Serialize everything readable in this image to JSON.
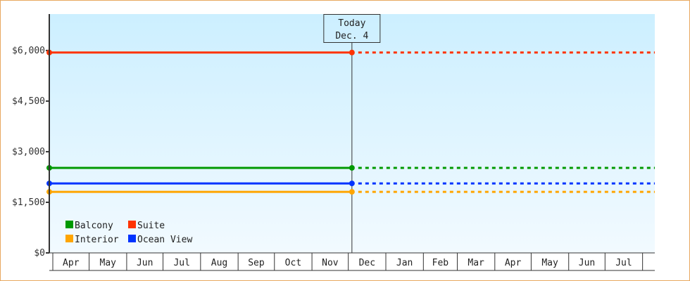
{
  "chart_data": {
    "type": "line",
    "title": "",
    "xlabel": "",
    "ylabel": "",
    "ylim": [
      0,
      7080
    ],
    "yticks": [
      {
        "value": 0,
        "label": "$0"
      },
      {
        "value": 1500,
        "label": "$1,500"
      },
      {
        "value": 3000,
        "label": "$3,000"
      },
      {
        "value": 4500,
        "label": "$4,500"
      },
      {
        "value": 6000,
        "label": "$6,000"
      }
    ],
    "x_months": [
      "Apr",
      "May",
      "Jun",
      "Jul",
      "Aug",
      "Sep",
      "Oct",
      "Nov",
      "Dec",
      "Jan",
      "Feb",
      "Mar",
      "Apr",
      "May",
      "Jun",
      "Jul"
    ],
    "today": {
      "label": "Today",
      "date": "Dec. 4"
    },
    "grid": false,
    "legend_position": "bottom-left",
    "series": [
      {
        "name": "Balcony",
        "color": "#009900",
        "value": 2520
      },
      {
        "name": "Suite",
        "color": "#ff3300",
        "value": 5940
      },
      {
        "name": "Interior",
        "color": "#ffa500",
        "value": 1810
      },
      {
        "name": "Ocean View",
        "color": "#0033ff",
        "value": 2060
      }
    ],
    "note_style": "solid line up to today, dotted projection after"
  },
  "colors": {
    "frame": "#e8a860",
    "plot_top": "#ccefff",
    "plot_bottom": "#f2faff",
    "axis": "#333333"
  }
}
